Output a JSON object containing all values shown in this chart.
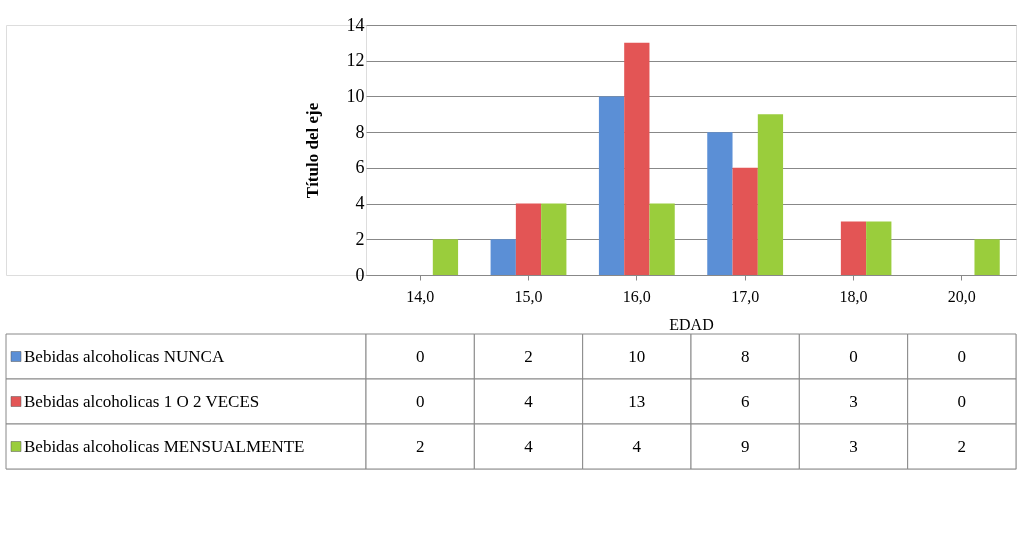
{
  "chart_data": {
    "type": "bar",
    "ylabel": "Título del eje",
    "xlabel": "EDAD",
    "categories": [
      "14,0",
      "15,0",
      "16,0",
      "17,0",
      "18,0",
      "20,0"
    ],
    "series": [
      {
        "name": "Bebidas alcoholicas NUNCA",
        "color": "#5b8fd6",
        "values": [
          0,
          2,
          10,
          8,
          0,
          0
        ]
      },
      {
        "name": "Bebidas alcoholicas 1 O 2 VECES",
        "color": "#e35555",
        "values": [
          0,
          4,
          13,
          6,
          3,
          0
        ]
      },
      {
        "name": "Bebidas alcoholicas MENSUALMENTE",
        "color": "#9acd3c",
        "values": [
          2,
          4,
          4,
          9,
          3,
          2
        ]
      }
    ],
    "ylim": [
      0,
      14
    ],
    "yticks": [
      0,
      2,
      4,
      6,
      8,
      10,
      12,
      14
    ],
    "grid": "y",
    "legend": "bottom",
    "data_labels": true
  }
}
